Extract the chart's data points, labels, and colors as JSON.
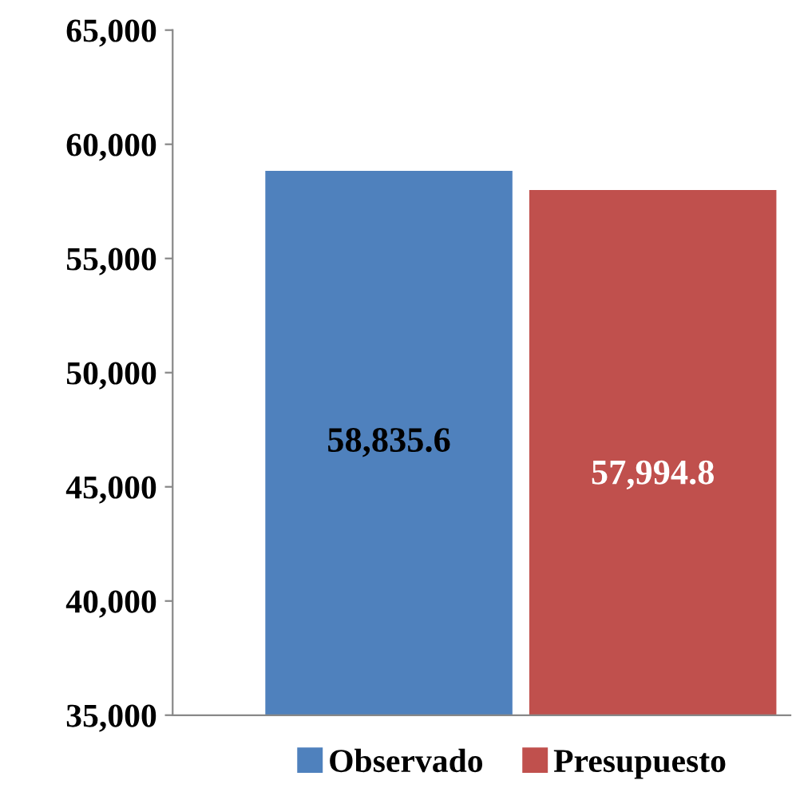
{
  "chart_data": {
    "type": "bar",
    "categories": [
      null
    ],
    "series": [
      {
        "name": "Observado",
        "color": "#4f81bd",
        "values": [
          58835.6
        ],
        "value_labels": [
          "58,835.6"
        ]
      },
      {
        "name": "Presupuesto",
        "color": "#c0504d",
        "values": [
          57994.8
        ],
        "value_labels": [
          "57,994.8"
        ]
      }
    ],
    "ylim": [
      35000,
      65000
    ],
    "yticks": [
      {
        "value": 35000,
        "label": "35,000"
      },
      {
        "value": 40000,
        "label": "40,000"
      },
      {
        "value": 45000,
        "label": "45,000"
      },
      {
        "value": 50000,
        "label": "50,000"
      },
      {
        "value": 55000,
        "label": "55,000"
      },
      {
        "value": 60000,
        "label": "60,000"
      },
      {
        "value": 65000,
        "label": "65,000"
      }
    ],
    "tick_labels": "y",
    "grid": false,
    "legend": "bottom"
  }
}
